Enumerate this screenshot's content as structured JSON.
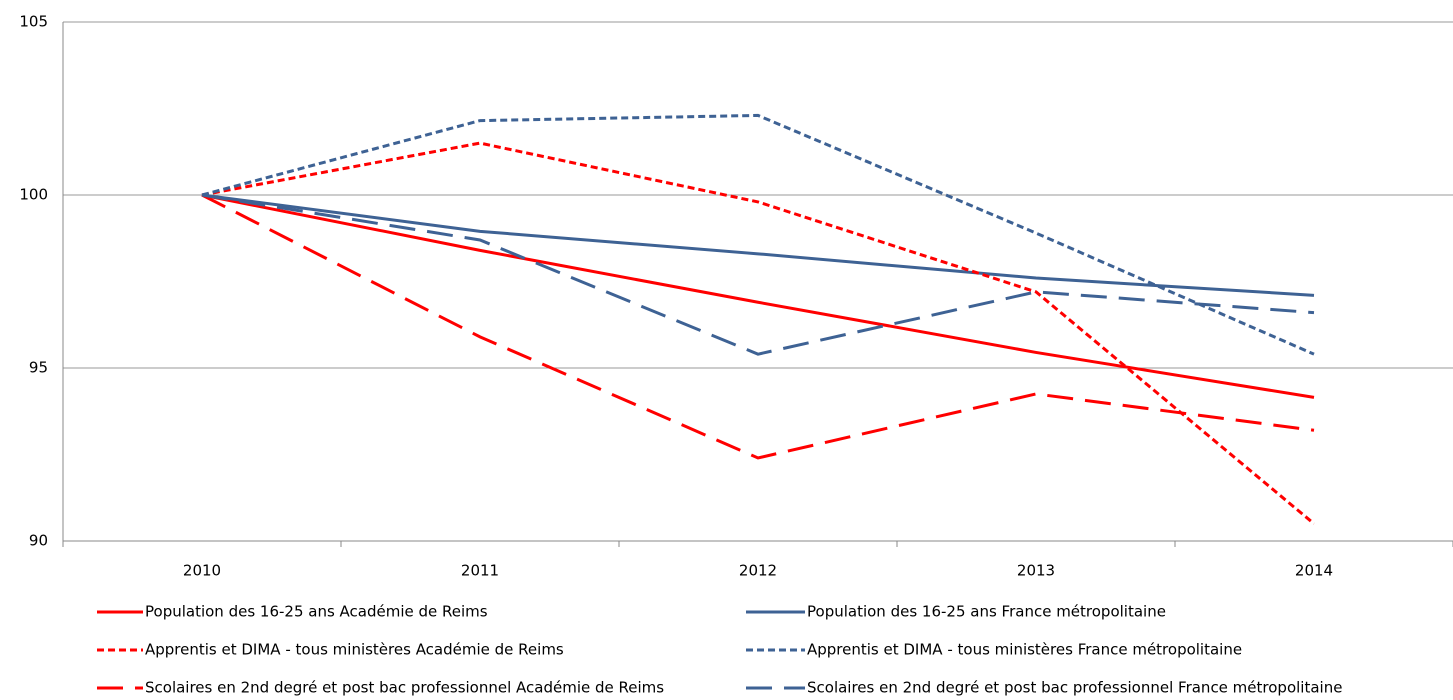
{
  "chart_data": {
    "type": "line",
    "categories": [
      "2010",
      "2011",
      "2012",
      "2013",
      "2014"
    ],
    "ylim": [
      90,
      105
    ],
    "yticks": [
      90,
      95,
      100,
      105
    ],
    "grid": true,
    "series": [
      {
        "name": "Population des 16-25 ans Académie de Reims",
        "color": "#ff0000",
        "dash": "solid",
        "values": [
          100,
          98.4,
          96.9,
          95.45,
          94.15
        ]
      },
      {
        "name": "Population des 16-25 ans France métropolitaine",
        "color": "#3e6294",
        "dash": "solid",
        "values": [
          100,
          98.95,
          98.3,
          97.6,
          97.1
        ]
      },
      {
        "name": "Apprentis et DIMA - tous ministères Académie de Reims",
        "color": "#ff0000",
        "dash": "dotted",
        "values": [
          100,
          101.5,
          99.8,
          97.2,
          90.5
        ]
      },
      {
        "name": "Apprentis et DIMA - tous ministères France métropolitaine",
        "color": "#3e6294",
        "dash": "dotted",
        "values": [
          100,
          102.15,
          102.3,
          98.9,
          95.4
        ]
      },
      {
        "name": "Scolaires en 2nd degré et post bac professionnel Académie de Reims",
        "color": "#ff0000",
        "dash": "dashed",
        "values": [
          100,
          95.9,
          92.4,
          94.25,
          93.2
        ]
      },
      {
        "name": "Scolaires en 2nd degré et post bac professionnel France métropolitaine",
        "color": "#3e6294",
        "dash": "dashed",
        "values": [
          100,
          98.7,
          95.4,
          97.2,
          96.6
        ]
      }
    ]
  }
}
